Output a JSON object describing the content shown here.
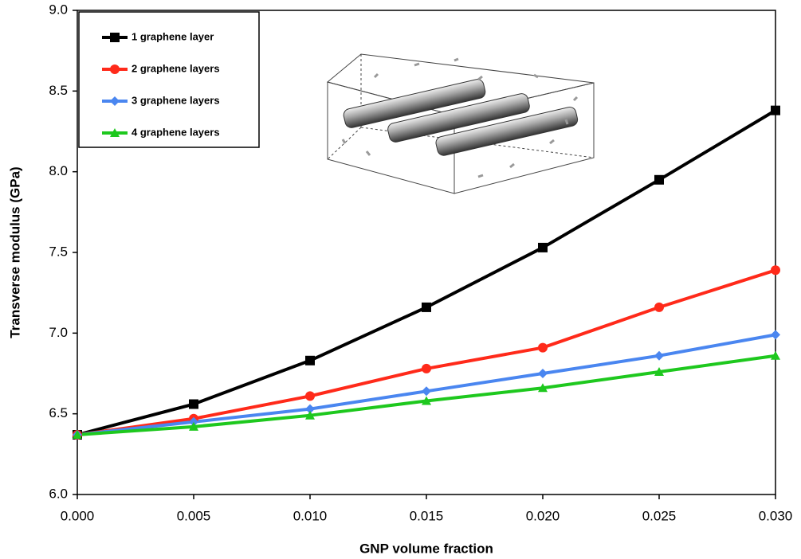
{
  "chart_data": {
    "type": "line",
    "x_label": "GNP volume fraction",
    "y_label": "Transverse modulus (GPa)",
    "x": [
      0,
      0.005,
      0.01,
      0.015,
      0.02,
      0.025,
      0.03
    ],
    "series": [
      {
        "name": "1 graphene layer",
        "color": "#000000",
        "marker": "square",
        "values": [
          6.37,
          6.56,
          6.83,
          7.16,
          7.53,
          7.95,
          8.38
        ]
      },
      {
        "name": "2 graphene layers",
        "color": "#ff2a1a",
        "marker": "circle",
        "values": [
          6.37,
          6.47,
          6.61,
          6.78,
          6.91,
          7.16,
          7.39
        ]
      },
      {
        "name": "3 graphene layers",
        "color": "#4a86f0",
        "marker": "diamond",
        "values": [
          6.37,
          6.45,
          6.53,
          6.64,
          6.75,
          6.86,
          6.99
        ]
      },
      {
        "name": "4 graphene layers",
        "color": "#1ec81e",
        "marker": "triangle",
        "values": [
          6.37,
          6.42,
          6.49,
          6.58,
          6.66,
          6.76,
          6.86
        ]
      }
    ],
    "xlim": [
      0,
      0.03
    ],
    "xticks": [
      {
        "value": 0,
        "label": "0.000"
      },
      {
        "value": 0.005,
        "label": "0.005"
      },
      {
        "value": 0.01,
        "label": "0.010"
      },
      {
        "value": 0.015,
        "label": "0.015"
      },
      {
        "value": 0.02,
        "label": "0.020"
      },
      {
        "value": 0.025,
        "label": "0.025"
      },
      {
        "value": 0.03,
        "label": "0.030"
      }
    ],
    "ylim": [
      6,
      9
    ],
    "yticks": [
      {
        "value": 6,
        "label": "6.0"
      },
      6.5,
      {
        "value": 7,
        "label": "7.0"
      },
      7.5,
      {
        "value": 8,
        "label": "8.0"
      },
      8.5,
      {
        "value": 9,
        "label": "9.0"
      }
    ],
    "legend": "top-left"
  }
}
